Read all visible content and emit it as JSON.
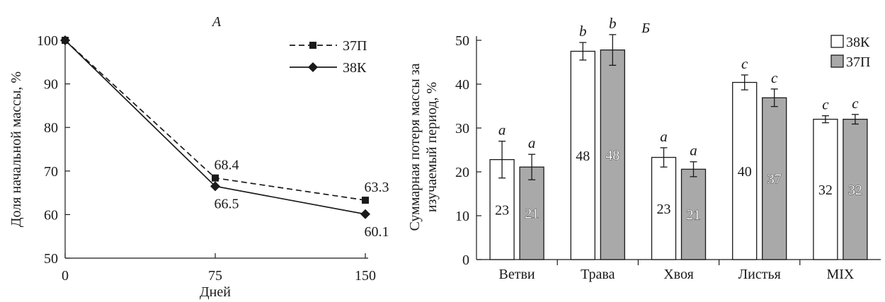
{
  "chart_data": [
    {
      "type": "line",
      "title": "А",
      "xlabel": "Дней",
      "ylabel": "Доля начальной массы, %",
      "x": [
        0,
        75,
        150
      ],
      "xticks": [
        "0",
        "75",
        "150"
      ],
      "yticks": [
        "50",
        "60",
        "70",
        "80",
        "90",
        "100"
      ],
      "xlim": [
        0,
        150
      ],
      "ylim": [
        50,
        100
      ],
      "legend_position": "top-right",
      "series": [
        {
          "name": "37П",
          "values": [
            100,
            68.4,
            63.3
          ],
          "labels": [
            "",
            "68.4",
            "63.3"
          ],
          "style": "dashed",
          "marker": "square"
        },
        {
          "name": "38К",
          "values": [
            100,
            66.5,
            60.1
          ],
          "labels": [
            "",
            "66.5",
            "60.1"
          ],
          "style": "solid",
          "marker": "diamond"
        }
      ]
    },
    {
      "type": "bar",
      "title": "Б",
      "xlabel": "",
      "ylabel": "Суммарная потеря массы за изучаемый период, %",
      "categories": [
        "Ветви",
        "Трава",
        "Хвоя",
        "Листья",
        "MIX"
      ],
      "ylim": [
        0,
        50
      ],
      "yticks": [
        "0",
        "10",
        "20",
        "30",
        "40",
        "50"
      ],
      "legend_position": "top-right",
      "series": [
        {
          "name": "38К",
          "color": "#ffffff",
          "values": [
            22.8,
            47.5,
            23.3,
            40.4,
            32.0
          ],
          "errors": [
            4.2,
            2.0,
            2.2,
            1.7,
            0.8
          ],
          "labels": [
            "23",
            "48",
            "23",
            "40",
            "32"
          ],
          "letters": [
            "a",
            "b",
            "a",
            "c",
            "c"
          ]
        },
        {
          "name": "37П",
          "color": "#a9a9a9",
          "values": [
            21.1,
            47.8,
            20.6,
            36.9,
            32.0
          ],
          "errors": [
            2.9,
            3.5,
            1.7,
            2.0,
            1.1
          ],
          "labels": [
            "21",
            "48",
            "21",
            "37",
            "32"
          ],
          "letters": [
            "a",
            "b",
            "a",
            "c",
            "c"
          ]
        }
      ]
    }
  ]
}
